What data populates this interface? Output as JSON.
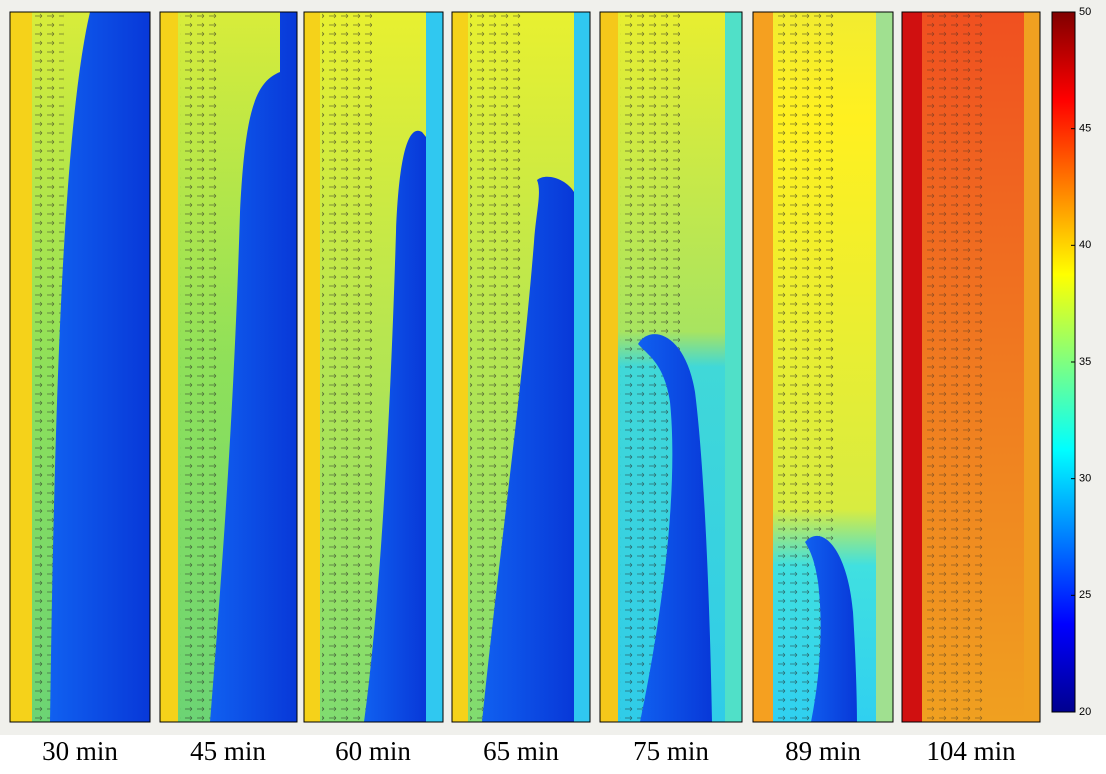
{
  "panels": [
    {
      "label": "30 min"
    },
    {
      "label": "45 min"
    },
    {
      "label": "60 min"
    },
    {
      "label": "65 min"
    },
    {
      "label": "75 min"
    },
    {
      "label": "89 min"
    },
    {
      "label": "104 min"
    }
  ],
  "colorbar": {
    "range": [
      20,
      50
    ],
    "ticks": [
      20,
      25,
      30,
      35,
      40,
      45,
      50
    ]
  }
}
